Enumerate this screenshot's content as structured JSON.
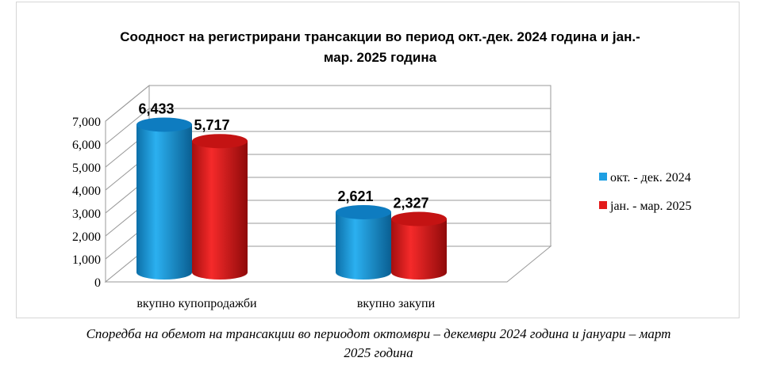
{
  "chart_data": {
    "type": "bar",
    "title": "Соодност на регистрирани трансакции во период окт.-дек. 2024 година и јан.-мар. 2025 година",
    "title_lines": [
      "Соодност на регистрирани трансакции во период окт.-дек. 2024 година и јан.-",
      "мар. 2025 година"
    ],
    "categories": [
      "вкупно купопродажби",
      "вкупно закупи"
    ],
    "series": [
      {
        "name": "окт. - дек. 2024",
        "values": [
          6433,
          2621
        ],
        "labels": [
          "6,433",
          "2,621"
        ],
        "color": "#1E9FE3"
      },
      {
        "name": "јан. - мар. 2025",
        "values": [
          5717,
          2327
        ],
        "labels": [
          "5,717",
          "2,327"
        ],
        "color": "#E31B1B"
      }
    ],
    "y_ticks": [
      "0",
      "1,000",
      "2,000",
      "3,000",
      "4,000",
      "5,000",
      "6,000",
      "7,000"
    ],
    "ylim": [
      0,
      7000
    ],
    "grid": true,
    "legend_position": "right",
    "style": "3d-cylinder"
  },
  "caption": {
    "line1": "Според­ба на обемот на трансакции во периодот октомври – декември 2024 година и јануари – март",
    "line2": "2025 година"
  }
}
